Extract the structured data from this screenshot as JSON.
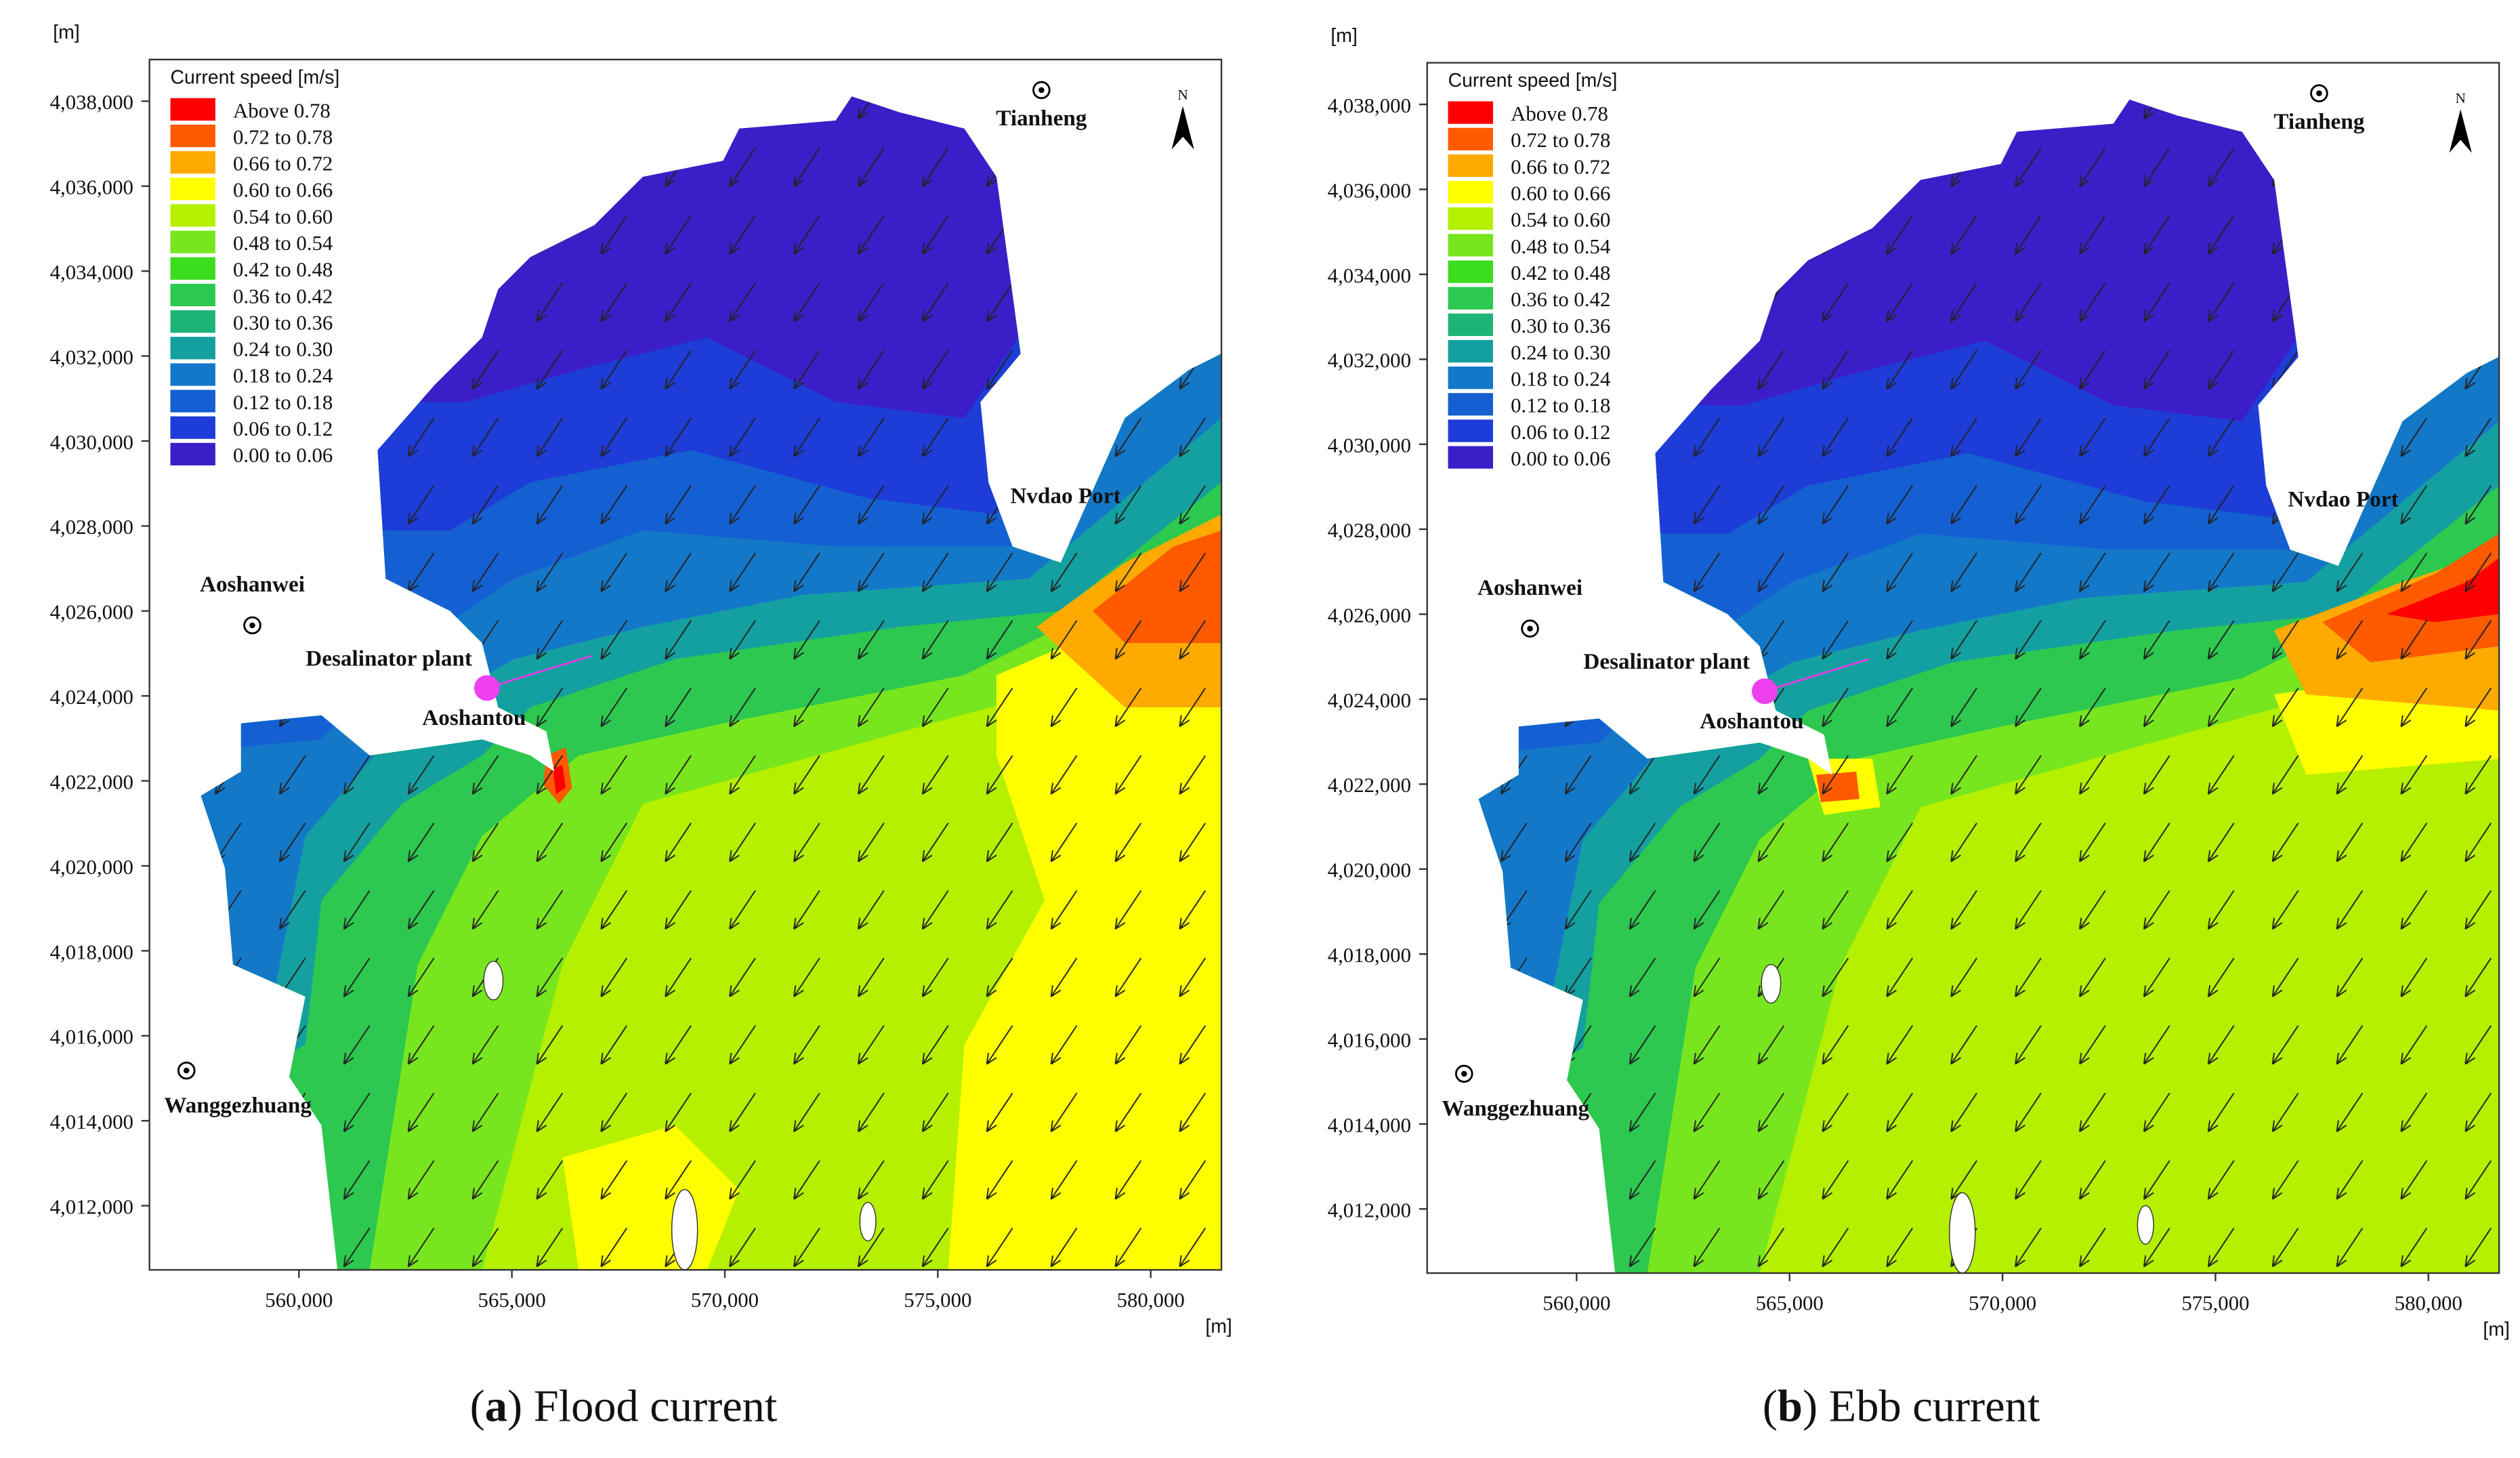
{
  "panels": [
    {
      "caption": [
        "(",
        "a",
        ") Flood current"
      ],
      "y_unit": "[m]",
      "x_unit": "[m]",
      "north_label": "N",
      "xlim": [
        556490,
        581660
      ],
      "ylim": [
        4010490,
        4038980
      ],
      "xticks": [
        {
          "value": 560000,
          "label": "560,000"
        },
        {
          "value": 565000,
          "label": "565,000"
        },
        {
          "value": 570000,
          "label": "570,000"
        },
        {
          "value": 575000,
          "label": "575,000"
        },
        {
          "value": 580000,
          "label": "580,000"
        }
      ],
      "yticks": [
        {
          "value": 4012000,
          "label": "4,012,000"
        },
        {
          "value": 4014000,
          "label": "4,014,000"
        },
        {
          "value": 4016000,
          "label": "4,016,000"
        },
        {
          "value": 4018000,
          "label": "4,018,000"
        },
        {
          "value": 4020000,
          "label": "4,020,000"
        },
        {
          "value": 4022000,
          "label": "4,022,000"
        },
        {
          "value": 4024000,
          "label": "4,024,000"
        },
        {
          "value": 4026000,
          "label": "4,026,000"
        },
        {
          "value": 4028000,
          "label": "4,028,000"
        },
        {
          "value": 4030000,
          "label": "4,030,000"
        },
        {
          "value": 4032000,
          "label": "4,032,000"
        },
        {
          "value": 4034000,
          "label": "4,034,000"
        },
        {
          "value": 4036000,
          "label": "4,036,000"
        },
        {
          "value": 4038000,
          "label": "4,038,000"
        }
      ],
      "legend": {
        "title": "Current speed [m/s]",
        "items": [
          {
            "label": "Above  0.78",
            "color": "#ff0000"
          },
          {
            "label": "0.72 to 0.78",
            "color": "#ff5a00"
          },
          {
            "label": "0.66 to 0.72",
            "color": "#ffaa00"
          },
          {
            "label": "0.60 to 0.66",
            "color": "#ffff00"
          },
          {
            "label": "0.54 to 0.60",
            "color": "#b4f000"
          },
          {
            "label": "0.48 to 0.54",
            "color": "#78e61e"
          },
          {
            "label": "0.42 to 0.48",
            "color": "#3cdc1e"
          },
          {
            "label": "0.36 to 0.42",
            "color": "#2dc850"
          },
          {
            "label": "0.30 to 0.36",
            "color": "#1eb478"
          },
          {
            "label": "0.24 to 0.30",
            "color": "#14a0a0"
          },
          {
            "label": "0.18 to 0.24",
            "color": "#1478c8"
          },
          {
            "label": "0.12 to 0.18",
            "color": "#1460d2"
          },
          {
            "label": "0.06 to 0.12",
            "color": "#1e3cd7"
          },
          {
            "label": "0.00 to 0.06",
            "color": "#3c1ec8"
          }
        ]
      },
      "places": [
        "Tianheng",
        "Nvdao Port",
        "Aoshanwei",
        "Desalinator plant",
        "Aoshantou",
        "Wanggezhuang"
      ]
    },
    {
      "caption": [
        "(",
        "b",
        ") Ebb current"
      ],
      "y_unit": "[m]",
      "x_unit": "[m]",
      "north_label": "N",
      "xlim": [
        556490,
        581660
      ],
      "ylim": [
        4010490,
        4038980
      ],
      "xticks": [
        {
          "value": 560000,
          "label": "560,000"
        },
        {
          "value": 565000,
          "label": "565,000"
        },
        {
          "value": 570000,
          "label": "570,000"
        },
        {
          "value": 575000,
          "label": "575,000"
        },
        {
          "value": 580000,
          "label": "580,000"
        }
      ],
      "yticks": [
        {
          "value": 4012000,
          "label": "4,012,000"
        },
        {
          "value": 4014000,
          "label": "4,014,000"
        },
        {
          "value": 4016000,
          "label": "4,016,000"
        },
        {
          "value": 4018000,
          "label": "4,018,000"
        },
        {
          "value": 4020000,
          "label": "4,020,000"
        },
        {
          "value": 4022000,
          "label": "4,022,000"
        },
        {
          "value": 4024000,
          "label": "4,024,000"
        },
        {
          "value": 4026000,
          "label": "4,026,000"
        },
        {
          "value": 4028000,
          "label": "4,028,000"
        },
        {
          "value": 4030000,
          "label": "4,030,000"
        },
        {
          "value": 4032000,
          "label": "4,032,000"
        },
        {
          "value": 4034000,
          "label": "4,034,000"
        },
        {
          "value": 4036000,
          "label": "4,036,000"
        },
        {
          "value": 4038000,
          "label": "4,038,000"
        }
      ],
      "legend": {
        "title": "Current speed [m/s]",
        "items": [
          {
            "label": "Above  0.78",
            "color": "#ff0000"
          },
          {
            "label": "0.72 to 0.78",
            "color": "#ff5a00"
          },
          {
            "label": "0.66 to 0.72",
            "color": "#ffaa00"
          },
          {
            "label": "0.60 to 0.66",
            "color": "#ffff00"
          },
          {
            "label": "0.54 to 0.60",
            "color": "#b4f000"
          },
          {
            "label": "0.48 to 0.54",
            "color": "#78e61e"
          },
          {
            "label": "0.42 to 0.48",
            "color": "#3cdc1e"
          },
          {
            "label": "0.36 to 0.42",
            "color": "#2dc850"
          },
          {
            "label": "0.30 to 0.36",
            "color": "#1eb478"
          },
          {
            "label": "0.24 to 0.30",
            "color": "#14a0a0"
          },
          {
            "label": "0.18 to 0.24",
            "color": "#1478c8"
          },
          {
            "label": "0.12 to 0.18",
            "color": "#1460d2"
          },
          {
            "label": "0.06 to 0.12",
            "color": "#1e3cd7"
          },
          {
            "label": "0.00 to 0.06",
            "color": "#3c1ec8"
          }
        ]
      },
      "places": [
        "Tianheng",
        "Nvdao Port",
        "Aoshanwei",
        "Desalinator plant",
        "Aoshantou",
        "Wanggezhuang"
      ]
    }
  ]
}
